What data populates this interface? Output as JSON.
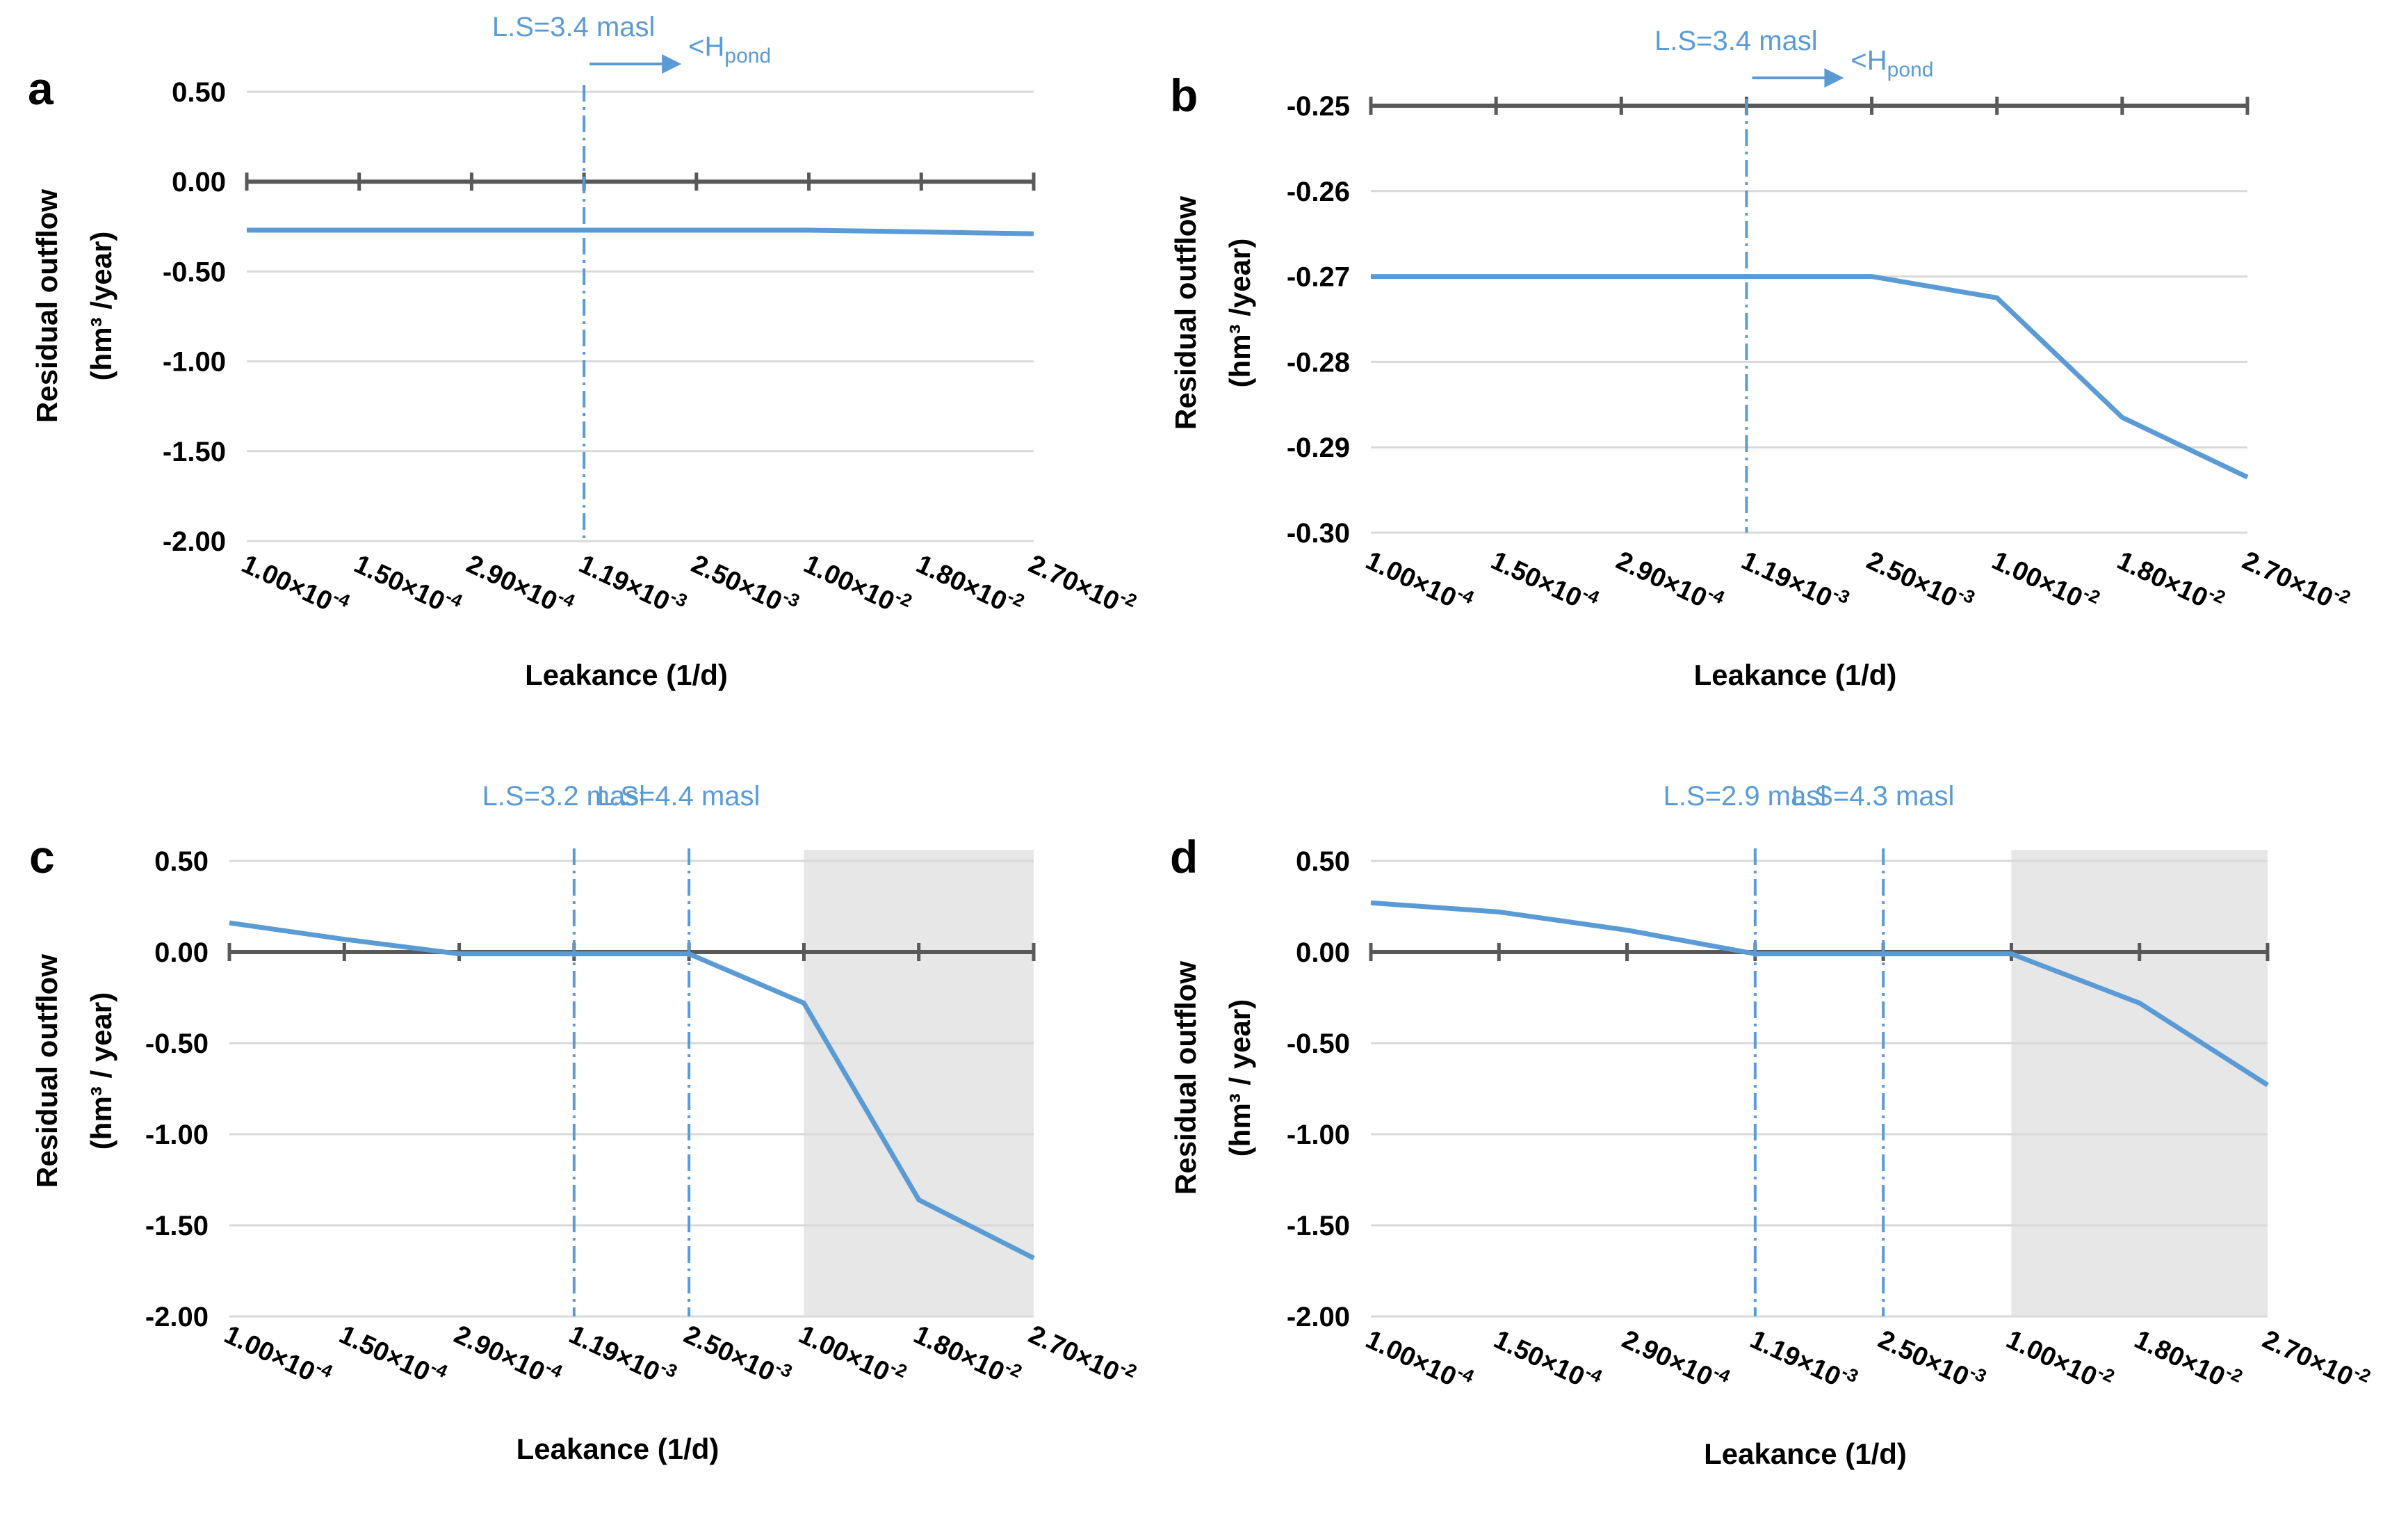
{
  "chart_data": [
    {
      "panel": "a",
      "type": "line",
      "categories": [
        "1.00×10-4",
        "1.50×10-4",
        "2.90×10-4",
        "1.19×10-3",
        "2.50×10-3",
        "1.00×10-2",
        "1.80×10-2",
        "2.70×10-2"
      ],
      "series": [
        {
          "values": [
            -0.27,
            -0.27,
            -0.27,
            -0.27,
            -0.27,
            -0.27,
            -0.28,
            -0.29
          ]
        }
      ],
      "xlabel": "Leakance (1/d)",
      "ylabel": [
        "Residual outflow",
        "(hm³ /year)"
      ],
      "ylim": [
        -2.0,
        0.5
      ],
      "yticks": [
        "0.50",
        "0.00",
        "-0.50",
        "-1.00",
        "-1.50",
        "-2.00"
      ],
      "ytick_values": [
        0.5,
        0.0,
        -0.5,
        -1.0,
        -1.5,
        -2.0
      ],
      "zero_line": 0.0,
      "grid": true,
      "annotations": [
        {
          "text": "L.S=3.4 masl",
          "at": "1.19×10-3",
          "arrow": true,
          "arrow_text": "<H",
          "arrow_sub": "pond"
        }
      ],
      "shaded_from": null
    },
    {
      "panel": "b",
      "type": "line",
      "categories": [
        "1.00×10-4",
        "1.50×10-4",
        "2.90×10-4",
        "1.19×10-3",
        "2.50×10-3",
        "1.00×10-2",
        "1.80×10-2",
        "2.70×10-2"
      ],
      "series": [
        {
          "values": [
            -0.27,
            -0.27,
            -0.27,
            -0.27,
            -0.27,
            -0.2725,
            -0.2865,
            -0.2935
          ]
        }
      ],
      "xlabel": "Leakance (1/d)",
      "ylabel": [
        "Residual outflow",
        "(hm³ /year)"
      ],
      "ylim": [
        -0.3,
        -0.25
      ],
      "yticks": [
        "-0.25",
        "-0.26",
        "-0.27",
        "-0.28",
        "-0.29",
        "-0.30"
      ],
      "ytick_values": [
        -0.25,
        -0.26,
        -0.27,
        -0.28,
        -0.29,
        -0.3
      ],
      "zero_line": -0.25,
      "grid": true,
      "annotations": [
        {
          "text": "L.S=3.4 masl",
          "at": "1.19×10-3",
          "arrow": true,
          "arrow_text": "<H",
          "arrow_sub": "pond"
        }
      ],
      "shaded_from": null
    },
    {
      "panel": "c",
      "type": "line",
      "categories": [
        "1.00×10-4",
        "1.50×10-4",
        "2.90×10-4",
        "1.19×10-3",
        "2.50×10-3",
        "1.00×10-2",
        "1.80×10-2",
        "2.70×10-2"
      ],
      "series": [
        {
          "values": [
            0.16,
            0.07,
            -0.01,
            -0.01,
            -0.01,
            -0.28,
            -1.36,
            -1.68
          ]
        }
      ],
      "xlabel": "Leakance (1/d)",
      "ylabel": [
        "Residual outflow",
        "(hm³ / year)"
      ],
      "ylim": [
        -2.0,
        0.5
      ],
      "yticks": [
        "0.50",
        "0.00",
        "-0.50",
        "-1.00",
        "-1.50",
        "-2.00"
      ],
      "ytick_values": [
        0.5,
        0.0,
        -0.5,
        -1.0,
        -1.5,
        -2.0
      ],
      "zero_line": 0.0,
      "grid": true,
      "annotations": [
        {
          "text": "L.S=3.2 masl",
          "at": "1.19×10-3",
          "arrow": false
        },
        {
          "text": "L.S=4.4 masl",
          "at": "2.50×10-3",
          "arrow": false
        }
      ],
      "shaded_from": "1.00×10-2"
    },
    {
      "panel": "d",
      "type": "line",
      "categories": [
        "1.00×10-4",
        "1.50×10-4",
        "2.90×10-4",
        "1.19×10-3",
        "2.50×10-3",
        "1.00×10-2",
        "1.80×10-2",
        "2.70×10-2"
      ],
      "series": [
        {
          "values": [
            0.27,
            0.22,
            0.12,
            -0.01,
            -0.01,
            -0.01,
            -0.28,
            -0.73
          ]
        }
      ],
      "xlabel": "Leakance (1/d)",
      "ylabel": [
        "Residual outflow",
        "(hm³ / year)"
      ],
      "ylim": [
        -2.0,
        0.5
      ],
      "yticks": [
        "0.50",
        "0.00",
        "-0.50",
        "-1.00",
        "-1.50",
        "-2.00"
      ],
      "ytick_values": [
        0.5,
        0.0,
        -0.5,
        -1.0,
        -1.5,
        -2.0
      ],
      "zero_line": 0.0,
      "grid": true,
      "annotations": [
        {
          "text": "L.S=2.9 masl",
          "at": "1.19×10-3",
          "arrow": false
        },
        {
          "text": "L.S=4.3 masl",
          "at": "2.50×10-3",
          "arrow": false
        }
      ],
      "shaded_from": "1.00×10-2"
    }
  ],
  "colors": {
    "series": "#5b9bd5",
    "axis": "#595959",
    "grid": "#d9d9d9",
    "shade": "#e7e7e7"
  }
}
